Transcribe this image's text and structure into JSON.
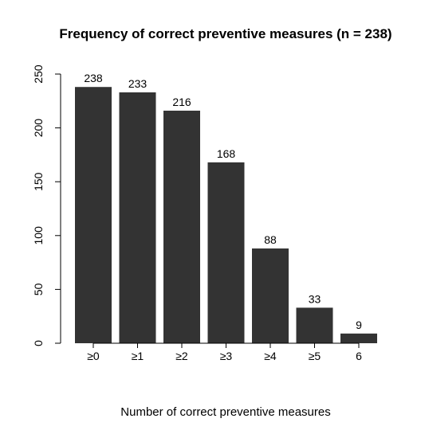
{
  "chart_data": {
    "type": "bar",
    "title": "Frequency of correct preventive measures (n = 238)",
    "xlabel": "Number of correct preventive measures",
    "ylabel": "",
    "categories": [
      "≥0",
      "≥1",
      "≥2",
      "≥3",
      "≥4",
      "≥5",
      "6"
    ],
    "values": [
      238,
      233,
      216,
      168,
      88,
      33,
      9
    ],
    "data_labels": [
      "238",
      "233",
      "216",
      "168",
      "88",
      "33",
      "9"
    ],
    "ylim": [
      0,
      250
    ],
    "yticks": [
      0,
      50,
      100,
      150,
      200,
      250
    ],
    "ytick_labels": [
      "0",
      "50",
      "100",
      "150",
      "200",
      "250"
    ],
    "grid": false,
    "legend": "none",
    "bar_color": "#333333"
  }
}
